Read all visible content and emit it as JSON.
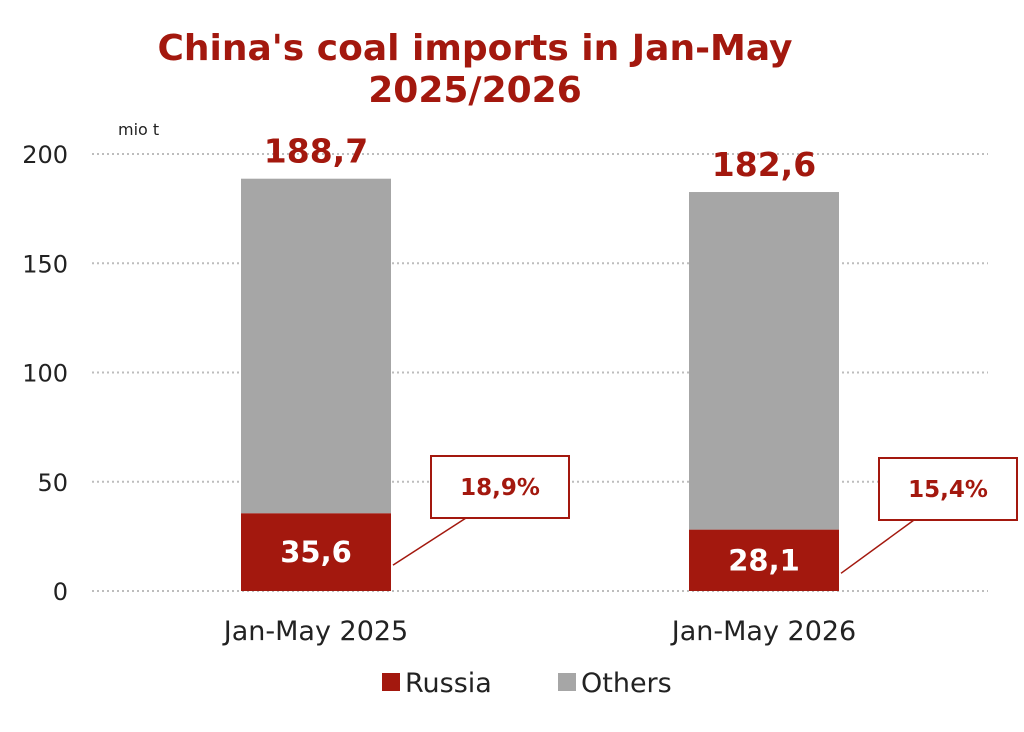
{
  "chart_data": {
    "type": "bar",
    "stacked": true,
    "title_lines": [
      "China's coal imports in Jan-May",
      "2025/2026"
    ],
    "unit_label": "mio t",
    "categories": [
      "Jan-May 2025",
      "Jan-May 2026"
    ],
    "series": [
      {
        "name": "Russia",
        "values": [
          35.6,
          28.1
        ],
        "labels": [
          "35,6",
          "28,1"
        ],
        "color": "#a3180e"
      },
      {
        "name": "Others",
        "values": [
          153.1,
          154.5
        ],
        "color": "#a6a6a6"
      }
    ],
    "totals": [
      "188,7",
      "182,6"
    ],
    "russia_share_labels": [
      "18,9%",
      "15,4%"
    ],
    "ylim": [
      0,
      200
    ],
    "yticks": [
      0,
      50,
      100,
      150,
      200
    ],
    "grid": true,
    "legend_position": "bottom"
  }
}
